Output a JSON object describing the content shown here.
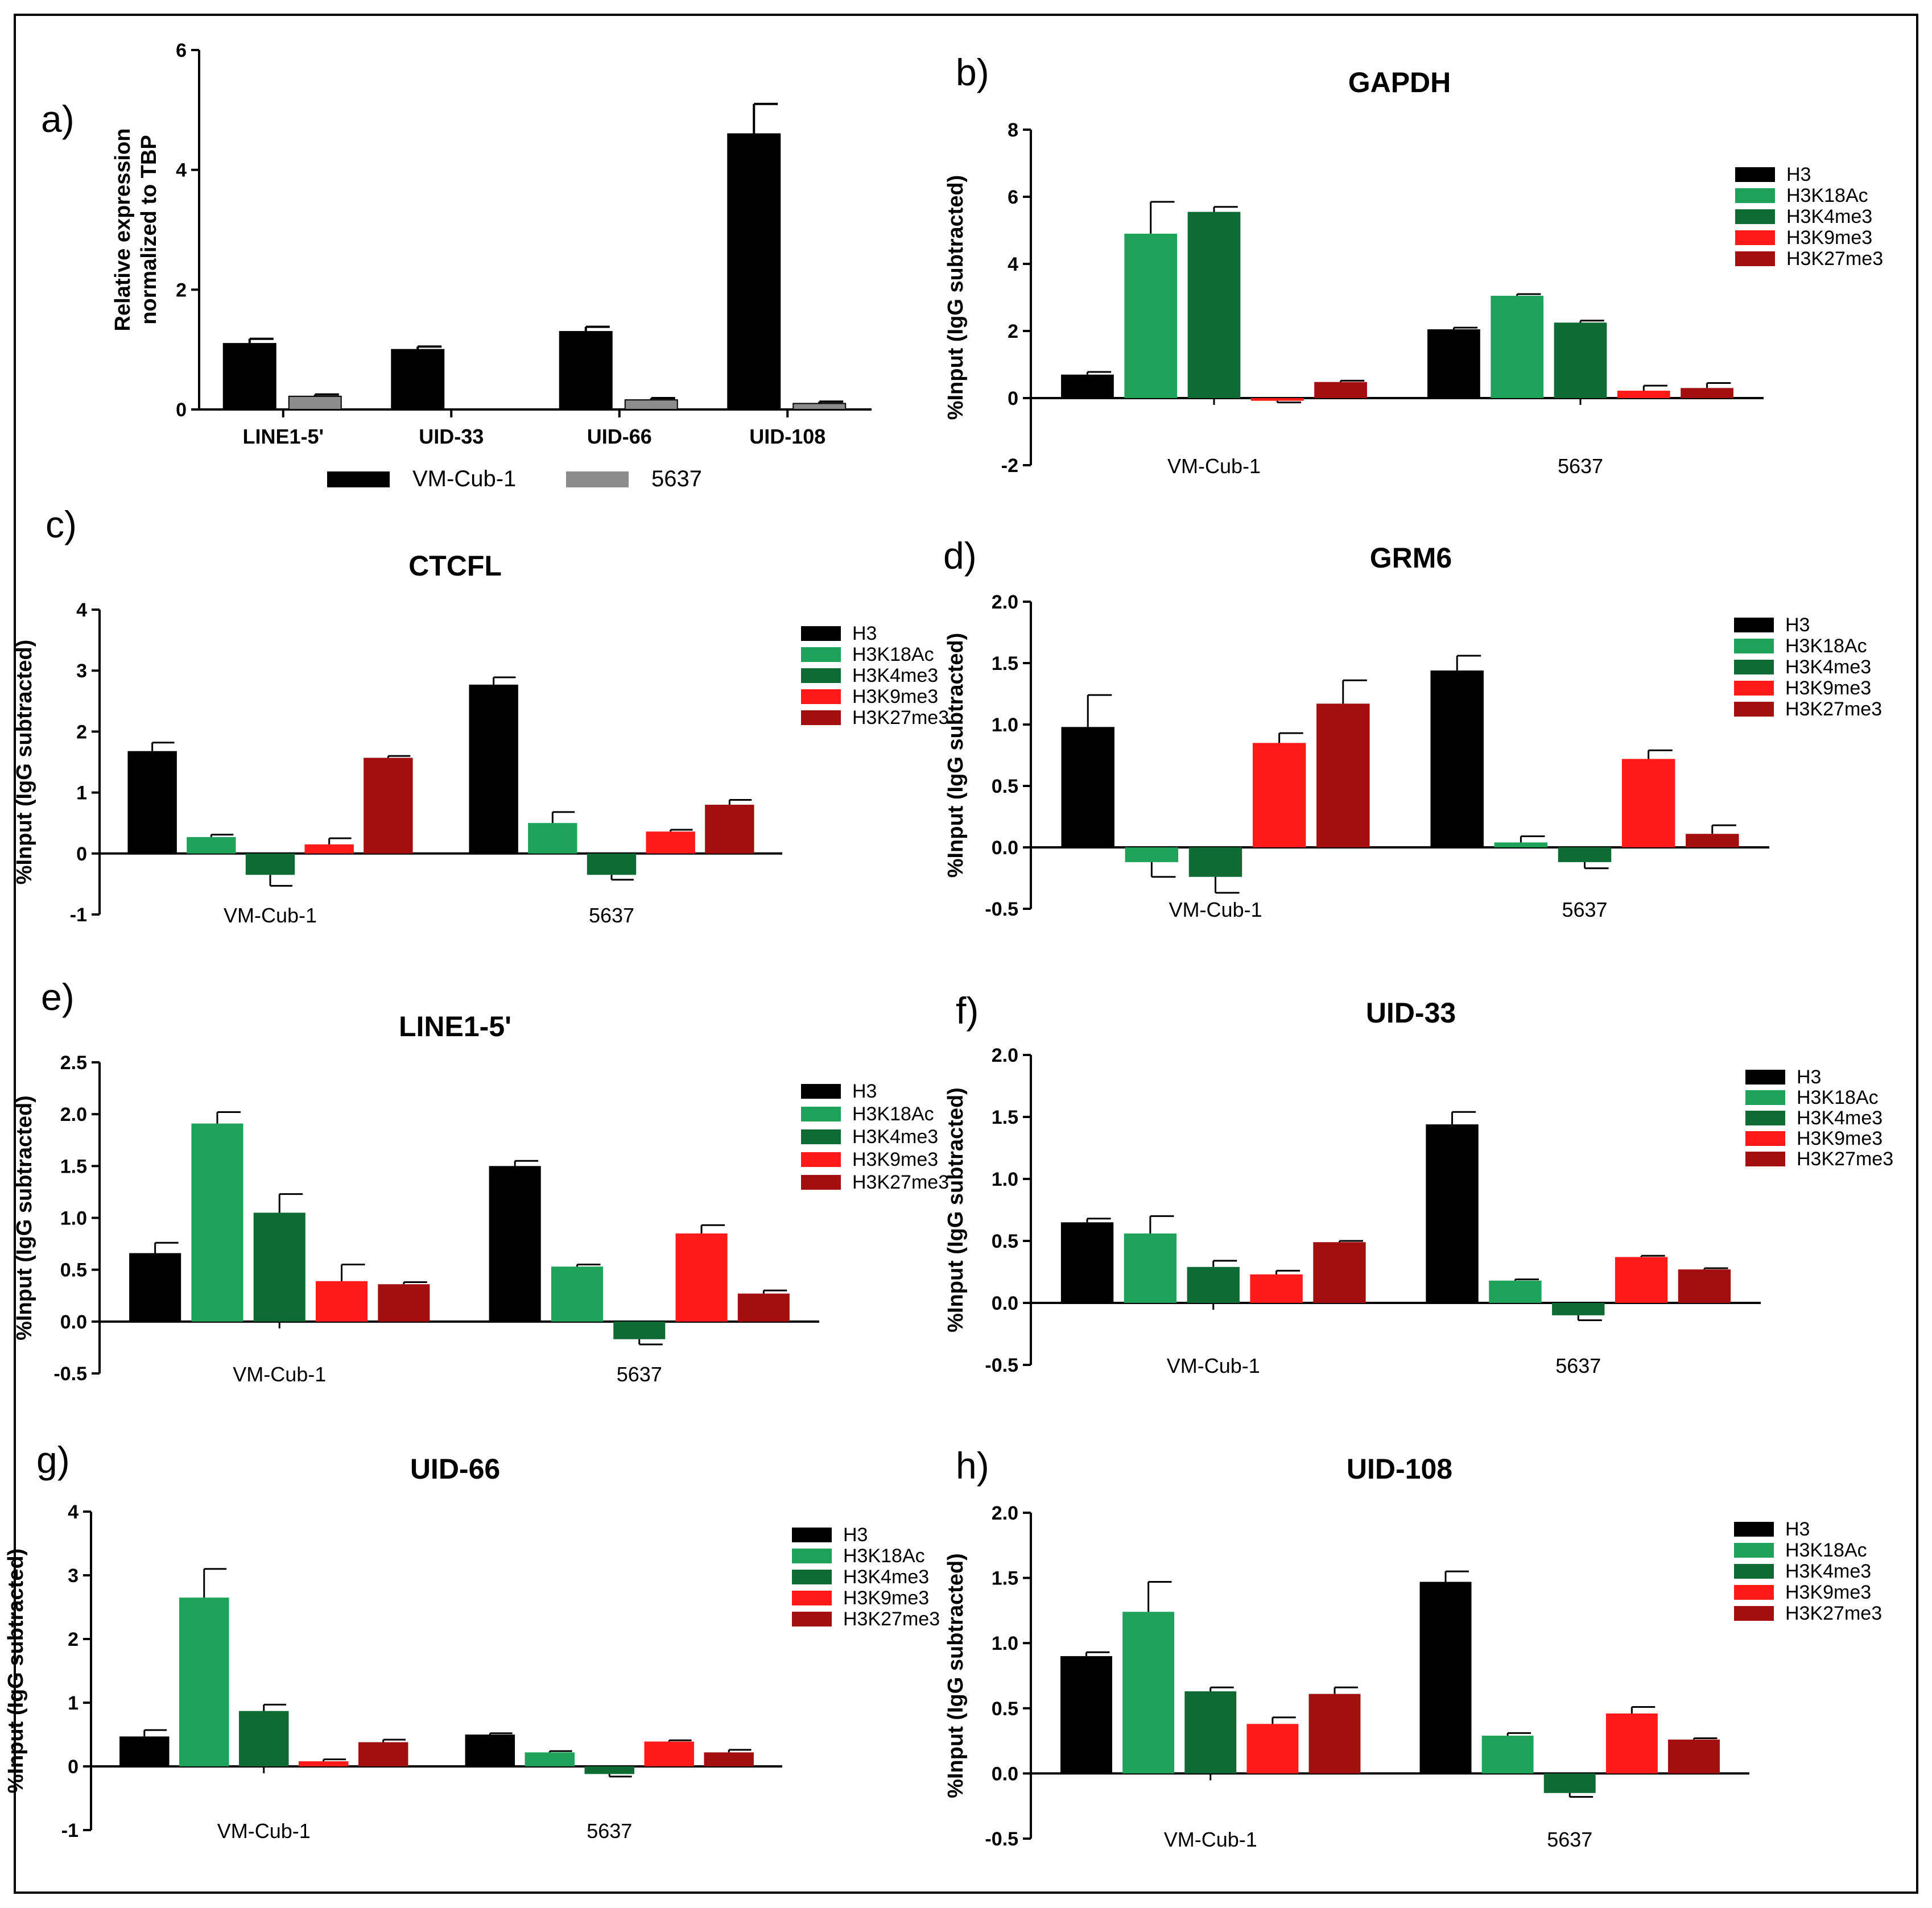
{
  "series_colors": {
    "H3": "#000000",
    "H3K18Ac": "#1fa35a",
    "H3K4me3": "#0f6b34",
    "H3K9me3": "#ff1a1a",
    "H3K27me3": "#a30f0f",
    "VM-Cub-1": "#000000",
    "5637": "#8c8c8c"
  },
  "chart_data": [
    {
      "id": "a",
      "letter": "a)",
      "type": "bar",
      "title": "",
      "ylabel": "Relative expression\nnormalized to TBP",
      "ylim": [
        0,
        6
      ],
      "yticks": [
        "0",
        "2",
        "4",
        "6"
      ],
      "categories": [
        "LINE1-5'",
        "UID-33",
        "UID-66",
        "UID-108"
      ],
      "series": [
        {
          "name": "VM-Cub-1",
          "values": [
            1.1,
            1.0,
            1.3,
            4.6
          ],
          "errors": [
            0.08,
            0.05,
            0.08,
            0.5
          ]
        },
        {
          "name": "5637",
          "values": [
            0.22,
            0.0,
            0.16,
            0.1
          ],
          "errors": [
            0.03,
            0.0,
            0.03,
            0.03
          ]
        }
      ],
      "legend": "bottom"
    },
    {
      "id": "b",
      "letter": "b)",
      "type": "bar",
      "title": "GAPDH",
      "ylabel": "%Input (IgG subtracted)",
      "ylim": [
        -2,
        8
      ],
      "yticks": [
        "-2",
        "0",
        "2",
        "4",
        "6",
        "8"
      ],
      "categories": [
        "VM-Cub-1",
        "5637"
      ],
      "series": [
        {
          "name": "H3",
          "values": [
            0.7,
            2.05
          ],
          "errors": [
            0.08,
            0.05
          ]
        },
        {
          "name": "H3K18Ac",
          "values": [
            4.9,
            3.05
          ],
          "errors": [
            0.95,
            0.05
          ]
        },
        {
          "name": "H3K4me3",
          "values": [
            5.55,
            2.25
          ],
          "errors": [
            0.15,
            0.06
          ]
        },
        {
          "name": "H3K9me3",
          "values": [
            -0.08,
            0.22
          ],
          "errors": [
            0.05,
            0.15
          ]
        },
        {
          "name": "H3K27me3",
          "values": [
            0.48,
            0.3
          ],
          "errors": [
            0.04,
            0.15
          ]
        }
      ],
      "legend": "right"
    },
    {
      "id": "c",
      "letter": "c)",
      "type": "bar",
      "title": "CTCFL",
      "ylabel": "%Input (IgG subtracted)",
      "ylim": [
        -1,
        4
      ],
      "yticks": [
        "-1",
        "0",
        "1",
        "2",
        "3",
        "4"
      ],
      "categories": [
        "VM-Cub-1",
        "5637"
      ],
      "series": [
        {
          "name": "H3",
          "values": [
            1.68,
            2.77
          ],
          "errors": [
            0.14,
            0.12
          ]
        },
        {
          "name": "H3K18Ac",
          "values": [
            0.27,
            0.5
          ],
          "errors": [
            0.04,
            0.18
          ]
        },
        {
          "name": "H3K4me3",
          "values": [
            -0.35,
            -0.35
          ],
          "errors": [
            0.18,
            0.08
          ]
        },
        {
          "name": "H3K9me3",
          "values": [
            0.15,
            0.36
          ],
          "errors": [
            0.1,
            0.03
          ]
        },
        {
          "name": "H3K27me3",
          "values": [
            1.57,
            0.8
          ],
          "errors": [
            0.03,
            0.08
          ]
        }
      ],
      "legend": "right"
    },
    {
      "id": "d",
      "letter": "d)",
      "type": "bar",
      "title": "GRM6",
      "ylabel": "%Input (IgG subtracted)",
      "ylim": [
        -0.5,
        2.0
      ],
      "yticks": [
        "-0.5",
        "0.0",
        "0.5",
        "1.0",
        "1.5",
        "2.0"
      ],
      "categories": [
        "VM-Cub-1",
        "5637"
      ],
      "series": [
        {
          "name": "H3",
          "values": [
            0.98,
            1.44
          ],
          "errors": [
            0.26,
            0.12
          ]
        },
        {
          "name": "H3K18Ac",
          "values": [
            -0.12,
            0.04
          ],
          "errors": [
            0.12,
            0.05
          ]
        },
        {
          "name": "H3K4me3",
          "values": [
            -0.24,
            -0.12
          ],
          "errors": [
            0.13,
            0.05
          ]
        },
        {
          "name": "H3K9me3",
          "values": [
            0.85,
            0.72
          ],
          "errors": [
            0.08,
            0.07
          ]
        },
        {
          "name": "H3K27me3",
          "values": [
            1.17,
            0.11
          ],
          "errors": [
            0.19,
            0.07
          ]
        }
      ],
      "legend": "right"
    },
    {
      "id": "e",
      "letter": "e)",
      "type": "bar",
      "title": "LINE1-5'",
      "ylabel": "%Input (IgG subtracted)",
      "ylim": [
        -0.5,
        2.5
      ],
      "yticks": [
        "-0.5",
        "0.0",
        "0.5",
        "1.0",
        "1.5",
        "2.0",
        "2.5"
      ],
      "categories": [
        "VM-Cub-1",
        "5637"
      ],
      "series": [
        {
          "name": "H3",
          "values": [
            0.66,
            1.5
          ],
          "errors": [
            0.1,
            0.05
          ]
        },
        {
          "name": "H3K18Ac",
          "values": [
            1.91,
            0.53
          ],
          "errors": [
            0.11,
            0.02
          ]
        },
        {
          "name": "H3K4me3",
          "values": [
            1.05,
            -0.17
          ],
          "errors": [
            0.18,
            0.05
          ]
        },
        {
          "name": "H3K9me3",
          "values": [
            0.39,
            0.85
          ],
          "errors": [
            0.16,
            0.08
          ]
        },
        {
          "name": "H3K27me3",
          "values": [
            0.36,
            0.27
          ],
          "errors": [
            0.02,
            0.03
          ]
        }
      ],
      "legend": "right"
    },
    {
      "id": "f",
      "letter": "f)",
      "type": "bar",
      "title": "UID-33",
      "ylabel": "%Input (IgG subtracted)",
      "ylim": [
        -0.5,
        2.0
      ],
      "yticks": [
        "-0.5",
        "0.0",
        "0.5",
        "1.0",
        "1.5",
        "2.0"
      ],
      "categories": [
        "VM-Cub-1",
        "5637"
      ],
      "series": [
        {
          "name": "H3",
          "values": [
            0.65,
            1.44
          ],
          "errors": [
            0.03,
            0.1
          ]
        },
        {
          "name": "H3K18Ac",
          "values": [
            0.56,
            0.18
          ],
          "errors": [
            0.14,
            0.01
          ]
        },
        {
          "name": "H3K4me3",
          "values": [
            0.29,
            -0.1
          ],
          "errors": [
            0.05,
            0.04
          ]
        },
        {
          "name": "H3K9me3",
          "values": [
            0.23,
            0.37
          ],
          "errors": [
            0.03,
            0.01
          ]
        },
        {
          "name": "H3K27me3",
          "values": [
            0.49,
            0.27
          ],
          "errors": [
            0.01,
            0.01
          ]
        }
      ],
      "legend": "right"
    },
    {
      "id": "g",
      "letter": "g)",
      "type": "bar",
      "title": "UID-66",
      "ylabel": "%Input (IgG subtracted)",
      "ylim": [
        -1,
        4
      ],
      "yticks": [
        "-1",
        "0",
        "1",
        "2",
        "3",
        "4"
      ],
      "categories": [
        "VM-Cub-1",
        "5637"
      ],
      "series": [
        {
          "name": "H3",
          "values": [
            0.47,
            0.5
          ],
          "errors": [
            0.1,
            0.02
          ]
        },
        {
          "name": "H3K18Ac",
          "values": [
            2.65,
            0.22
          ],
          "errors": [
            0.45,
            0.02
          ]
        },
        {
          "name": "H3K4me3",
          "values": [
            0.87,
            -0.12
          ],
          "errors": [
            0.1,
            0.04
          ]
        },
        {
          "name": "H3K9me3",
          "values": [
            0.08,
            0.39
          ],
          "errors": [
            0.03,
            0.02
          ]
        },
        {
          "name": "H3K27me3",
          "values": [
            0.38,
            0.22
          ],
          "errors": [
            0.04,
            0.04
          ]
        }
      ],
      "legend": "right"
    },
    {
      "id": "h",
      "letter": "h)",
      "type": "bar",
      "title": "UID-108",
      "ylabel": "%Input (IgG subtracted)",
      "ylim": [
        -0.5,
        2.0
      ],
      "yticks": [
        "-0.5",
        "0.0",
        "0.5",
        "1.0",
        "1.5",
        "2.0"
      ],
      "categories": [
        "VM-Cub-1",
        "5637"
      ],
      "series": [
        {
          "name": "H3",
          "values": [
            0.9,
            1.47
          ],
          "errors": [
            0.03,
            0.08
          ]
        },
        {
          "name": "H3K18Ac",
          "values": [
            1.24,
            0.29
          ],
          "errors": [
            0.23,
            0.02
          ]
        },
        {
          "name": "H3K4me3",
          "values": [
            0.63,
            -0.15
          ],
          "errors": [
            0.03,
            0.03
          ]
        },
        {
          "name": "H3K9me3",
          "values": [
            0.38,
            0.46
          ],
          "errors": [
            0.05,
            0.05
          ]
        },
        {
          "name": "H3K27me3",
          "values": [
            0.61,
            0.26
          ],
          "errors": [
            0.05,
            0.01
          ]
        }
      ],
      "legend": "right"
    }
  ]
}
